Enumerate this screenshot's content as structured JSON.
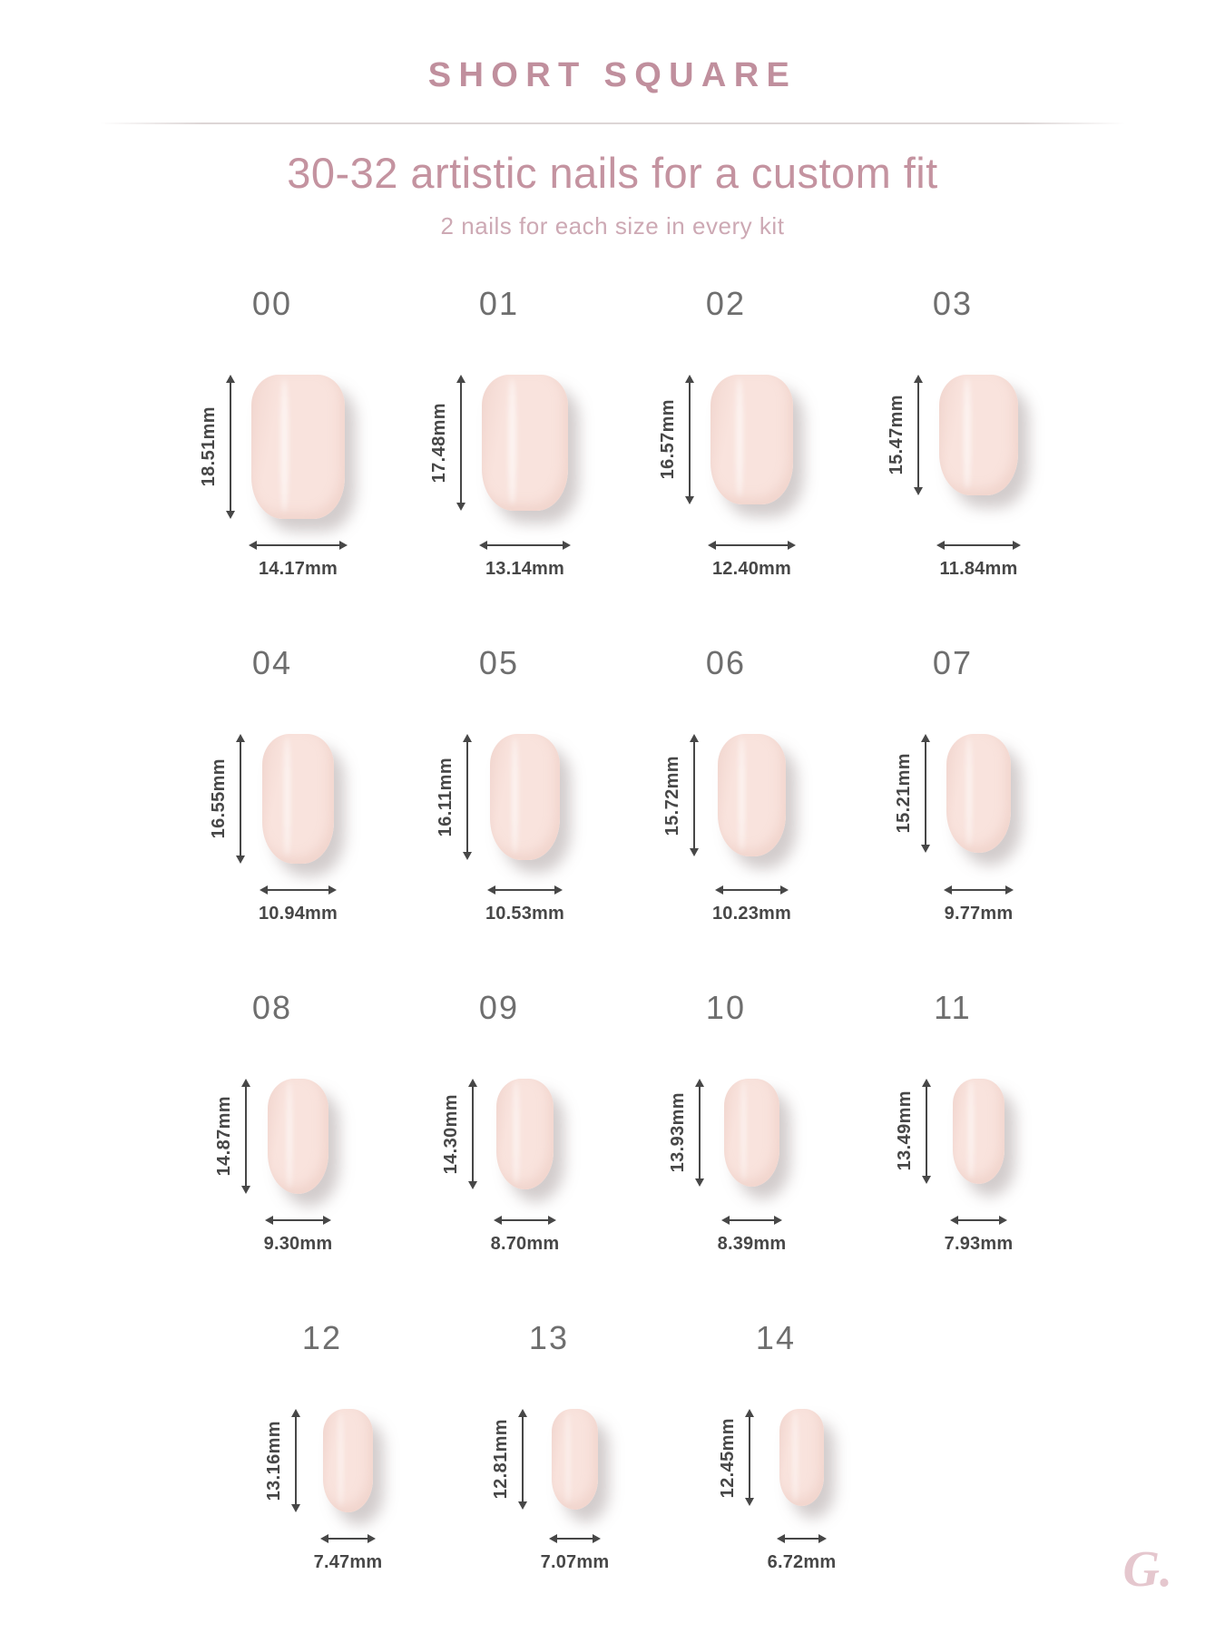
{
  "header": {
    "title": "SHORT SQUARE",
    "heading": "30-32 artistic nails for a custom fit",
    "subheading": "2 nails for each size in every kit"
  },
  "branding": {
    "logo_text": "G."
  },
  "unit": "mm",
  "colors": {
    "accent": "#c08f9d",
    "heading": "#c493a0",
    "subheading": "#cda9b4",
    "nail": "#f9e3dd",
    "measure_text": "#474747",
    "size_number": "#6e6e6e",
    "logo": "#e5c7ce"
  },
  "sizes": [
    {
      "id": "00",
      "height": "18.51mm",
      "width": "14.17mm"
    },
    {
      "id": "01",
      "height": "17.48mm",
      "width": "13.14mm"
    },
    {
      "id": "02",
      "height": "16.57mm",
      "width": "12.40mm"
    },
    {
      "id": "03",
      "height": "15.47mm",
      "width": "11.84mm"
    },
    {
      "id": "04",
      "height": "16.55mm",
      "width": "10.94mm"
    },
    {
      "id": "05",
      "height": "16.11mm",
      "width": "10.53mm"
    },
    {
      "id": "06",
      "height": "15.72mm",
      "width": "10.23mm"
    },
    {
      "id": "07",
      "height": "15.21mm",
      "width": "9.77mm"
    },
    {
      "id": "08",
      "height": "14.87mm",
      "width": "9.30mm"
    },
    {
      "id": "09",
      "height": "14.30mm",
      "width": "8.70mm"
    },
    {
      "id": "10",
      "height": "13.93mm",
      "width": "8.39mm"
    },
    {
      "id": "11",
      "height": "13.49mm",
      "width": "7.93mm"
    },
    {
      "id": "12",
      "height": "13.16mm",
      "width": "7.47mm"
    },
    {
      "id": "13",
      "height": "12.81mm",
      "width": "7.07mm"
    },
    {
      "id": "14",
      "height": "12.45mm",
      "width": "6.72mm"
    }
  ],
  "rows": [
    [
      0,
      1,
      2,
      3
    ],
    [
      4,
      5,
      6,
      7
    ],
    [
      8,
      9,
      10,
      11
    ],
    [
      12,
      13,
      14
    ]
  ]
}
